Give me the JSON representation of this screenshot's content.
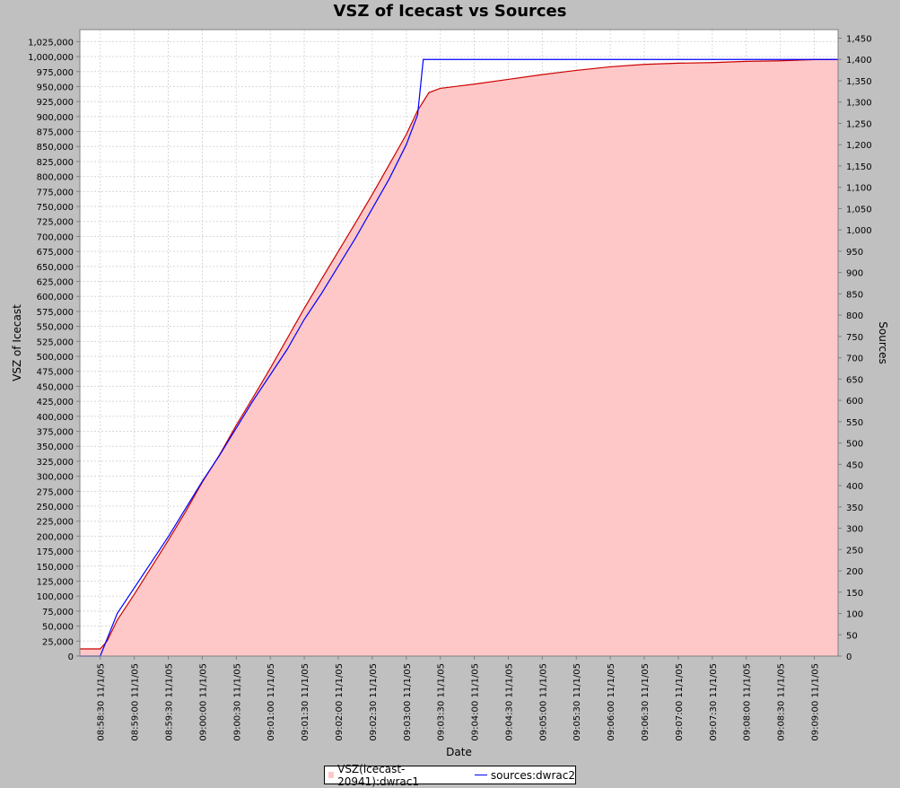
{
  "chart_data": {
    "type": "area",
    "title": "VSZ of Icecast vs Sources",
    "xlabel": "Date",
    "ylabel": "VSZ of Icecast",
    "y2label": "Sources",
    "x_ticks": [
      "08:58:30 11/1/05",
      "08:59:00 11/1/05",
      "08:59:30 11/1/05",
      "09:00:00 11/1/05",
      "09:00:30 11/1/05",
      "09:01:00 11/1/05",
      "09:01:30 11/1/05",
      "09:02:00 11/1/05",
      "09:02:30 11/1/05",
      "09:03:00 11/1/05",
      "09:03:30 11/1/05",
      "09:04:00 11/1/05",
      "09:04:30 11/1/05",
      "09:05:00 11/1/05",
      "09:05:30 11/1/05",
      "09:06:00 11/1/05",
      "09:06:30 11/1/05",
      "09:07:00 11/1/05",
      "09:07:30 11/1/05",
      "09:08:00 11/1/05",
      "09:08:30 11/1/05",
      "09:09:00 11/1/05"
    ],
    "ylim": [
      0,
      1045000
    ],
    "y_tick_step": 25000,
    "y2lim": [
      0,
      1470
    ],
    "y2_tick_step": 50,
    "xlim": [
      "08:58:12",
      "09:09:21"
    ],
    "grid": true,
    "legend_position": "bottom",
    "series": [
      {
        "name": "VSZ(icecast-20941):dwrac1",
        "axis": "left",
        "style": "area",
        "color": "#cc0000",
        "fill": "#ffc8c8",
        "x": [
          "08:58:12",
          "08:58:30",
          "08:58:36",
          "08:58:45",
          "08:59:00",
          "08:59:15",
          "08:59:30",
          "08:59:45",
          "09:00:00",
          "09:00:15",
          "09:00:30",
          "09:00:45",
          "09:01:00",
          "09:01:15",
          "09:01:30",
          "09:01:45",
          "09:02:00",
          "09:02:15",
          "09:02:30",
          "09:02:45",
          "09:03:00",
          "09:03:10",
          "09:03:20",
          "09:03:30",
          "09:04:00",
          "09:04:30",
          "09:05:00",
          "09:05:30",
          "09:06:00",
          "09:06:30",
          "09:07:00",
          "09:07:30",
          "09:08:00",
          "09:08:30",
          "09:09:00",
          "09:09:21"
        ],
        "values": [
          12000,
          12000,
          25000,
          60000,
          103000,
          148000,
          193000,
          240000,
          290000,
          335000,
          385000,
          432000,
          480000,
          530000,
          580000,
          628000,
          675000,
          722000,
          770000,
          820000,
          870000,
          910000,
          940000,
          947000,
          954000,
          962000,
          970000,
          977000,
          983000,
          987000,
          989000,
          990000,
          992000,
          993000,
          995000,
          995000
        ]
      },
      {
        "name": "sources:dwrac2",
        "axis": "right",
        "style": "line",
        "color": "#0000ff",
        "x": [
          "08:58:12",
          "08:58:30",
          "08:58:45",
          "08:59:00",
          "08:59:15",
          "08:59:30",
          "08:59:45",
          "09:00:00",
          "09:00:15",
          "09:00:30",
          "09:00:45",
          "09:01:00",
          "09:01:15",
          "09:01:30",
          "09:01:45",
          "09:02:00",
          "09:02:15",
          "09:02:30",
          "09:02:45",
          "09:03:00",
          "09:03:10",
          "09:03:15",
          "09:09:21"
        ],
        "values": [
          0,
          0,
          100,
          160,
          220,
          280,
          345,
          410,
          470,
          535,
          600,
          660,
          720,
          790,
          850,
          915,
          980,
          1050,
          1120,
          1200,
          1270,
          1400,
          1400
        ]
      }
    ]
  }
}
